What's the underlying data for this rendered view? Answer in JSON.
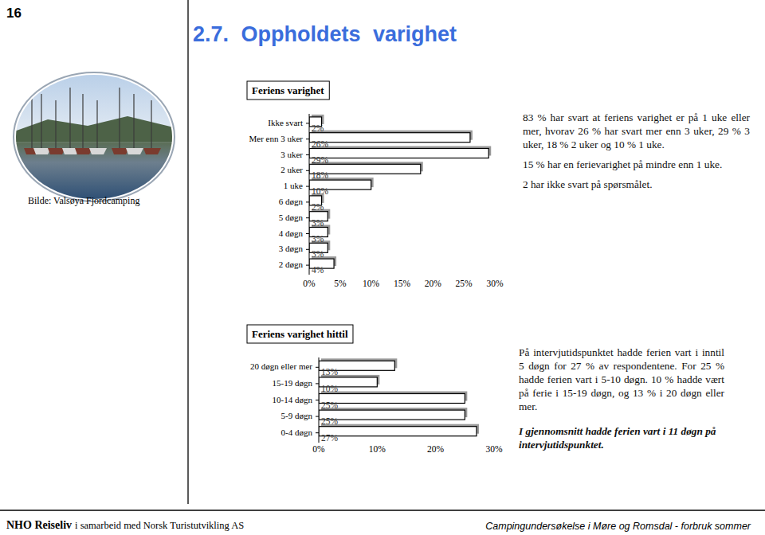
{
  "page": {
    "page_number": "16",
    "heading": "2.7. Oppholdets varighet",
    "photo_caption": "Bilde: Valsøya Fjordcamping",
    "paragraphs_top": [
      "83 % har svart at feriens varighet er på 1 uke eller mer, hvorav 26 % har svart mer enn 3 uker, 29 % 3 uker, 18 % 2 uker og 10 % 1 uke.",
      "15 % har en ferievarighet på mindre enn 1 uke.",
      "2 har ikke svart på spørsmålet."
    ],
    "paragraphs_bottom": [
      "På intervjutidspunktet hadde ferien vart i inntil 5 døgn for 27 % av respondentene. For 25 % hadde ferien vart i 5-10 døgn. 10 % hadde vært på ferie i 15-19 døgn, og 13 % i 20 døgn eller mer."
    ],
    "summary": "I gjennomsnitt hadde ferien vart i 11 døgn på intervjutidspunktet.",
    "footer_org": "NHO Reiseliv",
    "footer_partner": "i samarbeid med Norsk Turistutvikling AS",
    "footer_right": "Campingundersøkelse i Møre og Romsdal - forbruk sommer"
  },
  "chart_data": [
    {
      "type": "bar",
      "title": "Feriens varighet",
      "orientation": "horizontal",
      "categories": [
        "Ikke svart",
        "Mer enn 3 uker",
        "3 uker",
        "2 uker",
        "1 uke",
        "6 døgn",
        "5 døgn",
        "4 døgn",
        "3 døgn",
        "2 døgn"
      ],
      "values": [
        2,
        26,
        29,
        18,
        10,
        2,
        3,
        3,
        3,
        4
      ],
      "value_labels": [
        "2%",
        "26%",
        "29%",
        "18%",
        "10%",
        "2%",
        "3%",
        "3%",
        "3%",
        "4%"
      ],
      "data_labels": true,
      "color": "#ffffff",
      "xlim": [
        0,
        30
      ],
      "xticks": [
        {
          "value": 0,
          "label": "0%"
        },
        {
          "value": 5,
          "label": "5%"
        },
        {
          "value": 10,
          "label": "10%"
        },
        {
          "value": 15,
          "label": "15%"
        },
        {
          "value": 20,
          "label": "20%"
        },
        {
          "value": 25,
          "label": "25%"
        },
        {
          "value": 30,
          "label": "30%"
        }
      ],
      "grid": false
    },
    {
      "type": "bar",
      "title": "Feriens varighet hittil",
      "orientation": "horizontal",
      "categories": [
        "20 døgn eller mer",
        "15-19 døgn",
        "10-14 døgn",
        "5-9 døgn",
        "0-4 døgn"
      ],
      "values": [
        13,
        10,
        25,
        25,
        27
      ],
      "value_labels": [
        "13%",
        "10%",
        "25%",
        "25%",
        "27%"
      ],
      "data_labels": true,
      "color": "#ffffff",
      "xlim": [
        0,
        30
      ],
      "xticks": [
        {
          "value": 0,
          "label": "0%"
        },
        {
          "value": 10,
          "label": "10%"
        },
        {
          "value": 20,
          "label": "20%"
        },
        {
          "value": 30,
          "label": "30%"
        }
      ],
      "grid": false
    }
  ]
}
